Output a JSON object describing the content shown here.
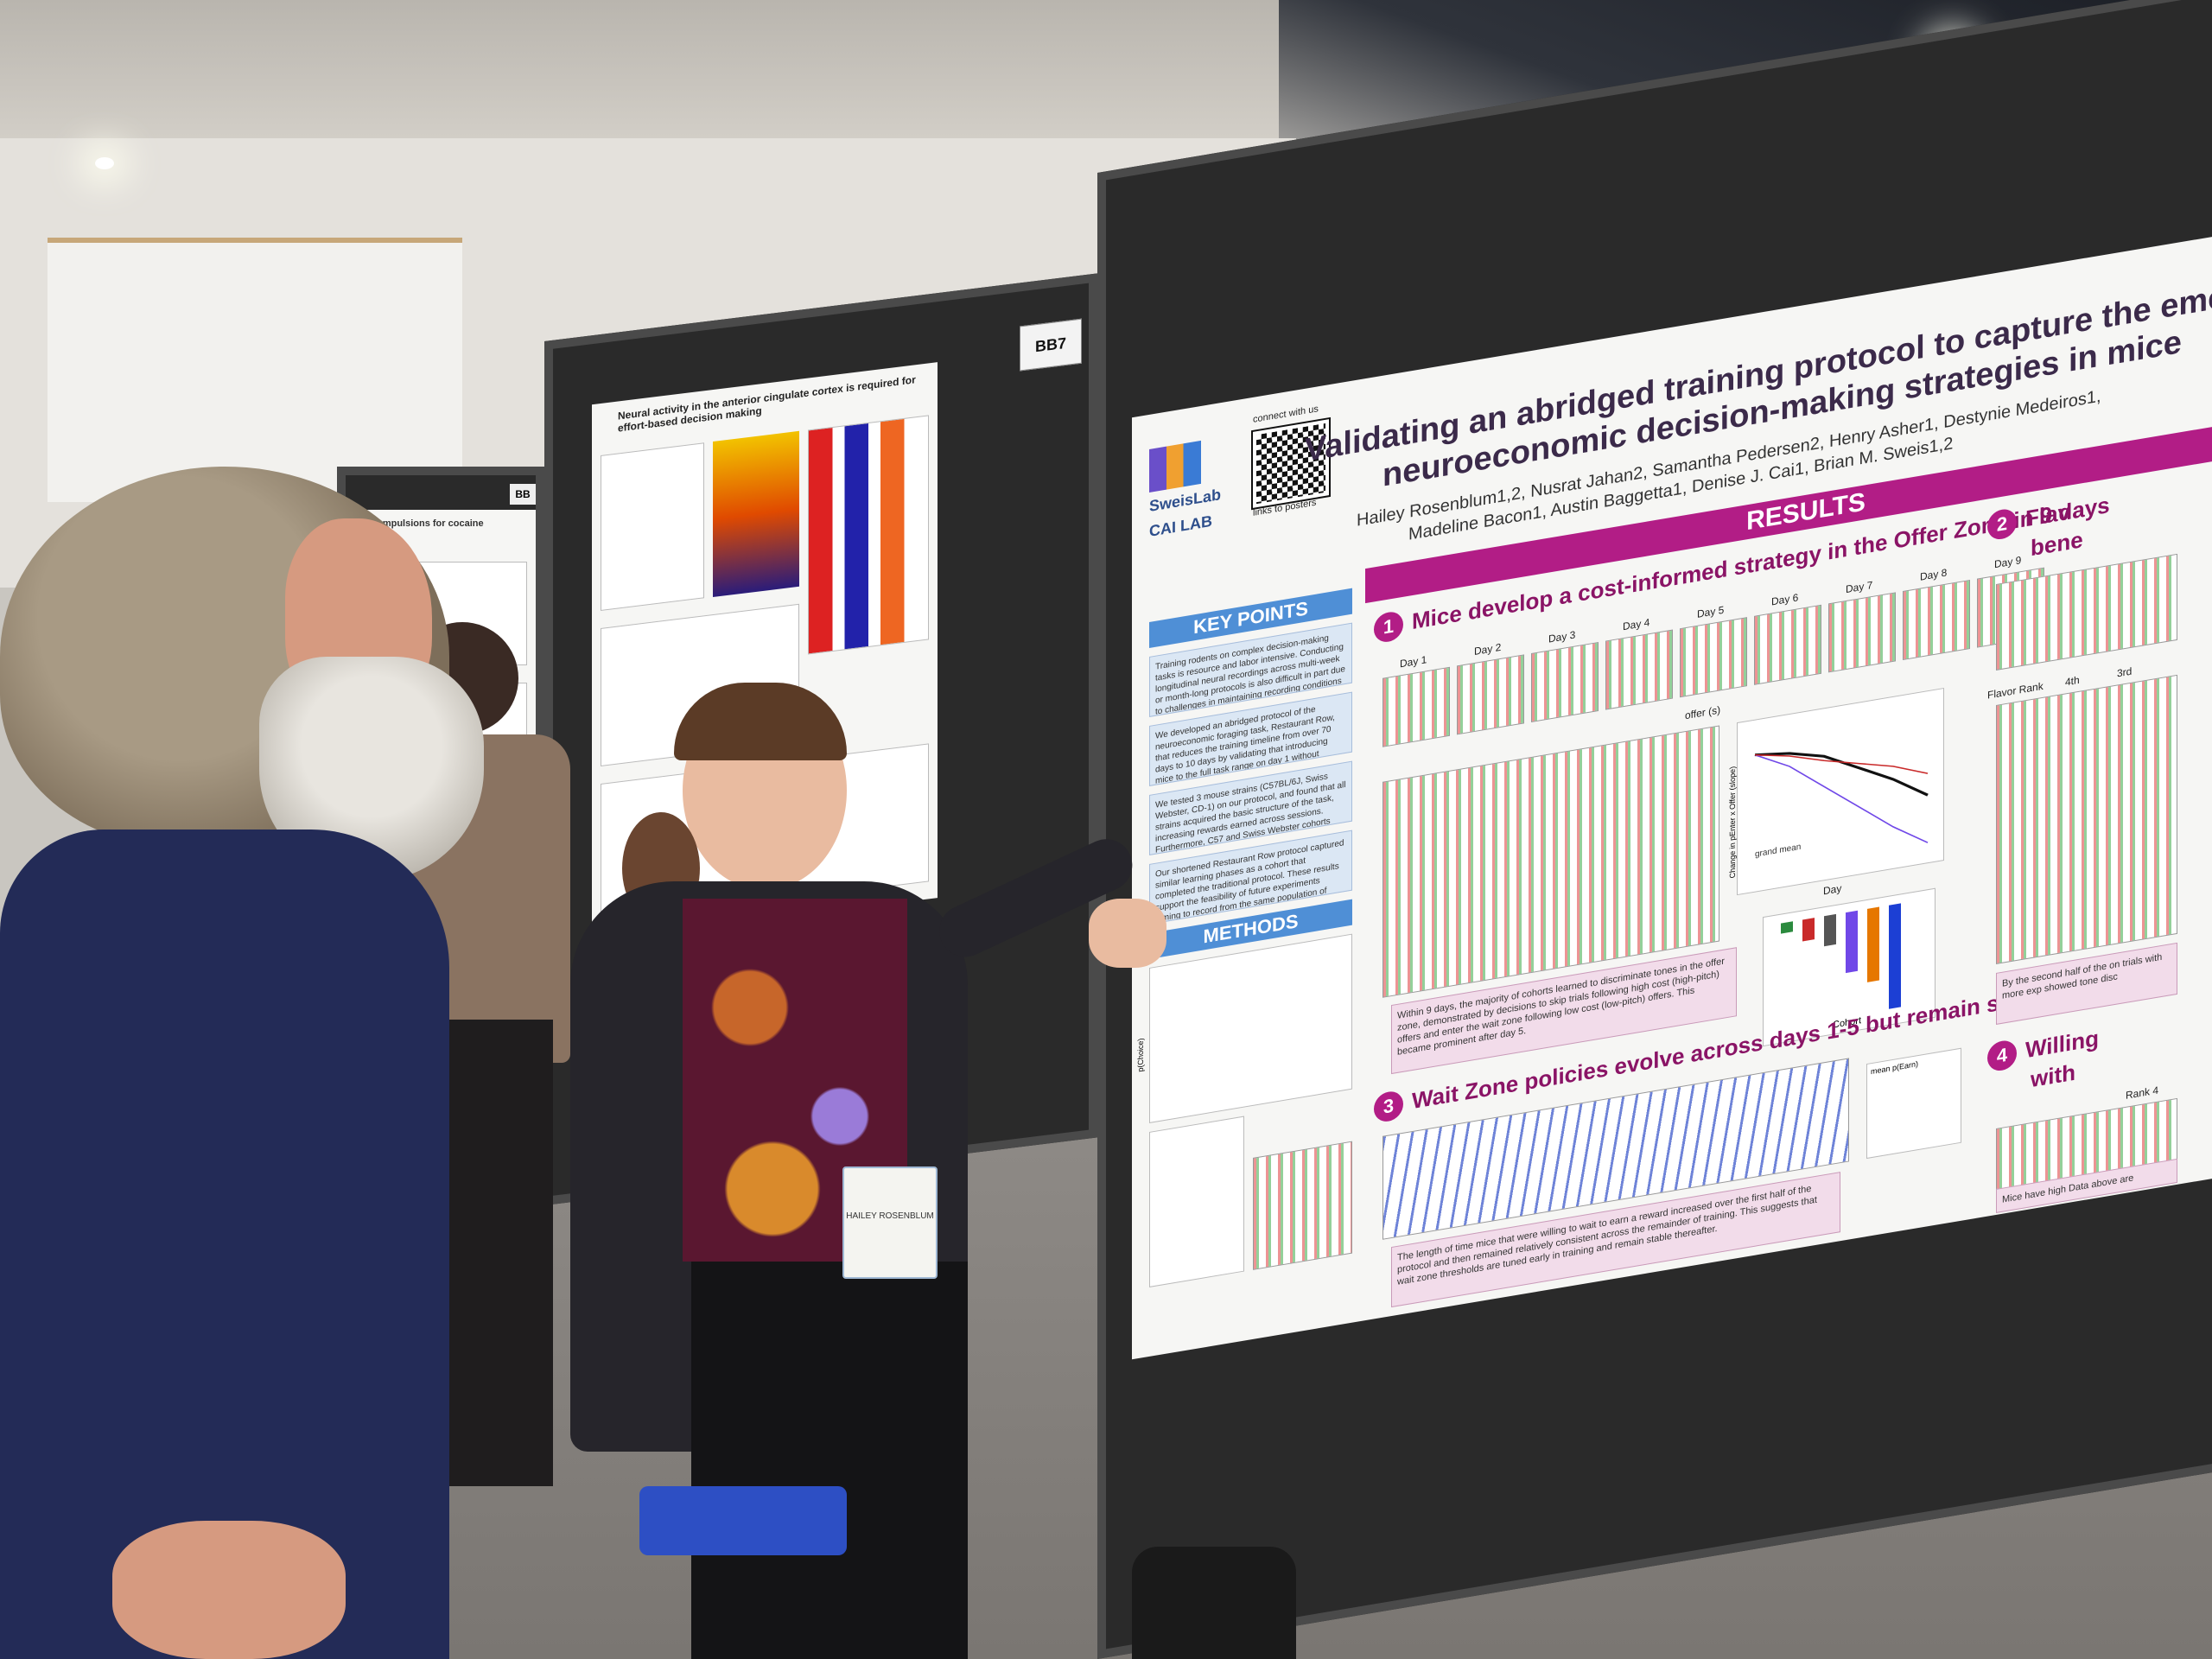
{
  "scene": {
    "description_tags": [
      "poster-session",
      "conference"
    ],
    "booth_tag": "BB7",
    "side_tag": "BB"
  },
  "main_poster": {
    "title_line1": "Validating an abridged training protocol to capture the emergen",
    "title_line2": "neuroeconomic decision-making strategies in mice",
    "authors_line1": "Hailey Rosenblum1,2, Nusrat Jahan2, Samantha Pedersen2, Henry Asher1, Destynie Medeiros1,",
    "authors_line2": "Madeline Bacon1, Austin Baggetta1, Denise J. Cai1, Brian M. Sweis1,2",
    "lab_logo_1": "SweisLab",
    "lab_logo_2": "CAI LAB",
    "qr_caption_top": "connect with us",
    "qr_caption_bottom": "links to posters",
    "results_label": "RESULTS",
    "key_points_label": "KEY POINTS",
    "methods_label": "METHODS",
    "key_points": [
      "Training rodents on complex decision-making tasks is resource and labor intensive. Conducting longitudinal neural recordings across multi-week or month-long protocols is also difficult in part due to challenges in maintaining recording conditions during testing.",
      "We developed an abridged protocol of the neuroeconomic foraging task, Restaurant Row, that reduces the training timeline from over 70 days to 10 days by validating that introducing mice to the full task range on day 1 without stages of training is feasible.",
      "We tested 3 mouse strains (C57BL/6J, Swiss Webster, CD-1) on our protocol, and found that all strains acquired the basic structure of the task, increasing rewards earned across sessions. Furthermore, C57 and Swiss Webster cohorts rapidly learned to use auditory cues to make cost-informed decisions.",
      "Our shortened Restaurant Row protocol captured similar learning phases as a cohort that completed the traditional protocol. These results support the feasibility of future experiments aiming to record from the same population of neurons across the development of decision-making strategies on this task."
    ],
    "section1_num": "1",
    "section1_title": "Mice develop a cost-informed strategy in the Offer Zone in 9 days",
    "section2_num": "2",
    "section2_title_a": "Flav",
    "section2_title_b": "bene",
    "section3_num": "3",
    "section3_title": "Wait Zone policies evolve across days 1-5 but remain stable thereafter",
    "section4_num": "4",
    "section4_title_a": "Willing",
    "section4_title_b": "with",
    "days": [
      "Day 1",
      "Day 2",
      "Day 3",
      "Day 4",
      "Day 5",
      "Day 6",
      "Day 7",
      "Day 8",
      "Day 9"
    ],
    "offer_axis_label": "offer (s)",
    "caption1": "Within 9 days, the majority of cohorts learned to discriminate tones in the offer zone, demonstrated by decisions to skip trials following high cost (high-pitch) offers and enter the wait zone following low cost (low-pitch) offers. This became prominent after day 5.",
    "caption3": "The length of time mice that were willing to wait to earn a reward increased over the first half of the protocol and then remained relatively consistent across the remainder of training. This suggests that wait zone thresholds are tuned early in training and remain stable thereafter.",
    "caption2": "By the second half of the on trials with more exp showed tone disc",
    "caption4": "Mice have high Data above are",
    "cohort_label": "Cohort",
    "day_axis": "Day",
    "flavor_rank_label": "Flavor Rank",
    "rank_4th": "4th",
    "rank_3rd": "3rd",
    "rank_4": "Rank 4",
    "grand_mean": "grand mean",
    "y_label_slope": "Change in pEnter x Offer (slope)",
    "y_label_choice": "p(Choice)",
    "y_label_earn": "mean p(Earn)",
    "bar_colors": [
      "#2b8a3e",
      "#c92a2a",
      "#555555",
      "#7048e8",
      "#e67700",
      "#1c3fd4"
    ]
  },
  "middle_poster": {
    "title": "Neural activity in the anterior cingulate cortex is required for effort-based decision making"
  },
  "left_poster": {
    "title": "compulsions for cocaine"
  },
  "badges": {
    "presenter_name": "HAILEY ROSENBLUM"
  }
}
